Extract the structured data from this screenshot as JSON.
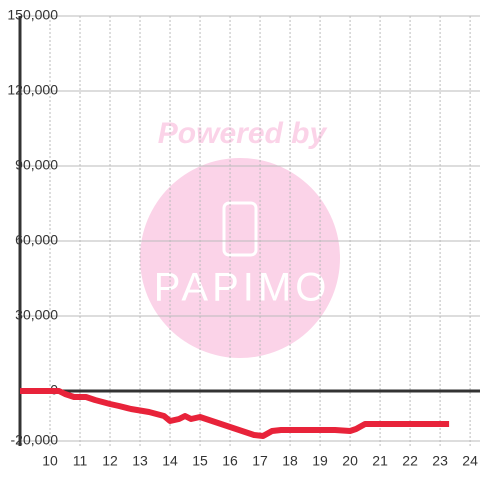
{
  "chart_data": {
    "type": "line",
    "watermark": "Powered by",
    "watermark_logo": "PAPIMO",
    "x": [
      9,
      10,
      10.3,
      10.5,
      10.8,
      11.2,
      11.5,
      12,
      12.3,
      12.7,
      13.3,
      13.8,
      14,
      14.3,
      14.5,
      14.7,
      15,
      15.3,
      15.7,
      16,
      16.4,
      16.8,
      17.1,
      17.4,
      17.7,
      18.5,
      19.5,
      20,
      20.2,
      20.5,
      21,
      22,
      23.3
    ],
    "series": [
      {
        "color": "#e8233a",
        "values": [
          0,
          0,
          0,
          -1200,
          -2400,
          -2400,
          -3600,
          -5200,
          -6000,
          -7200,
          -8400,
          -10000,
          -12000,
          -11200,
          -10000,
          -11200,
          -10400,
          -11600,
          -13200,
          -14400,
          -16000,
          -17600,
          -18000,
          -16000,
          -15600,
          -15600,
          -15600,
          -16000,
          -15200,
          -13200,
          -13200,
          -13200,
          -13200
        ]
      }
    ],
    "xlim": [
      9,
      24.33
    ],
    "ylim": [
      -22000,
      150000
    ],
    "xticks": [
      10,
      11,
      12,
      13,
      14,
      15,
      16,
      17,
      18,
      19,
      20,
      21,
      22,
      23,
      24
    ],
    "yticks": [
      {
        "value": -20000,
        "label": "-20,000"
      },
      0,
      {
        "value": 30000,
        "label": "30,000"
      },
      {
        "value": 60000,
        "label": "60,000"
      },
      {
        "value": 90000,
        "label": "90,000"
      },
      {
        "value": 120000,
        "label": "120,000"
      },
      {
        "value": 150000,
        "label": "150,000"
      }
    ],
    "grid": true
  }
}
